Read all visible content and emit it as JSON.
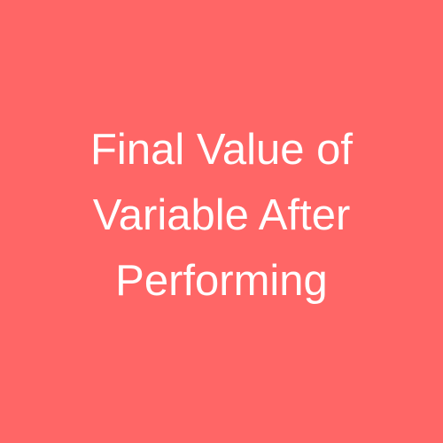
{
  "card": {
    "background_color": "#ff6666",
    "text_color": "#ffffff",
    "title_lines": [
      "Final Value of",
      "Variable After",
      "Performing"
    ]
  }
}
